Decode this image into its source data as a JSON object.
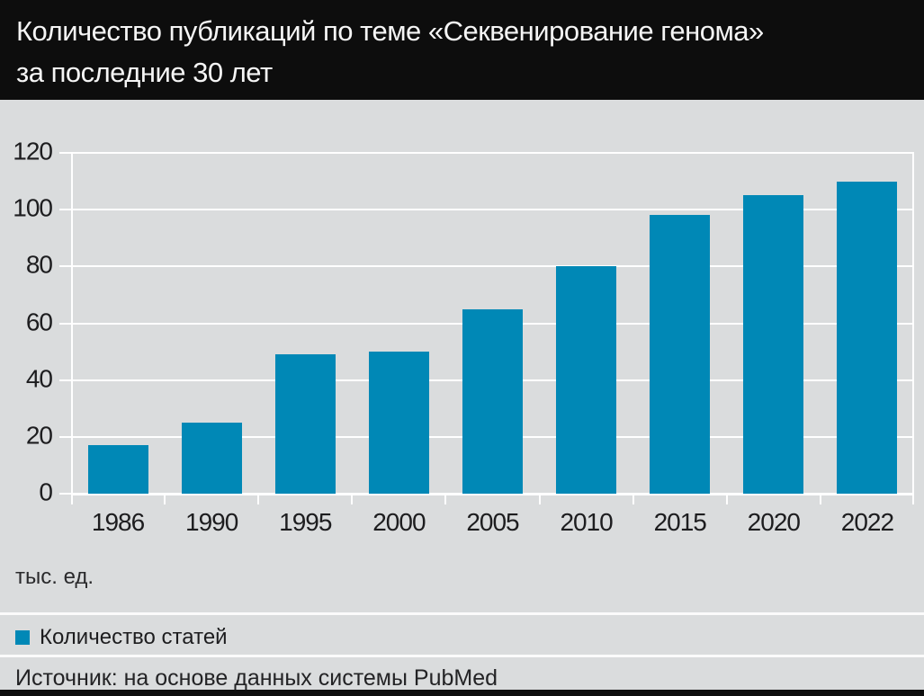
{
  "header": {
    "title_line1": "Количество публикаций по теме «Секвенирование генома»",
    "title_line2": "за последние 30 лет"
  },
  "chart_data": {
    "type": "bar",
    "title": "Количество публикаций по теме «Секвенирование генома» за последние 30 лет",
    "categories": [
      "1986",
      "1990",
      "1995",
      "2000",
      "2005",
      "2010",
      "2015",
      "2020",
      "2022"
    ],
    "values": [
      17,
      25,
      49,
      50,
      65,
      80,
      98,
      105,
      110
    ],
    "unit_label": "тыс. ед.",
    "ylim": [
      0,
      120
    ],
    "yticks": [
      0,
      20,
      40,
      60,
      80,
      100,
      120
    ],
    "grid": true,
    "legend_position": "bottom",
    "bar_color": "#0088b6",
    "legend": [
      {
        "label": "Количество статей",
        "color": "#0088b6"
      }
    ]
  },
  "footer": {
    "source": "Источник: на основе данных системы PubMed"
  },
  "colors": {
    "header_bg": "#0d0d0d",
    "background": "#dadcdd",
    "bar": "#0088b6",
    "gridline": "#ffffff",
    "text": "#1d1d1f",
    "title_text": "#f5f5f5"
  }
}
